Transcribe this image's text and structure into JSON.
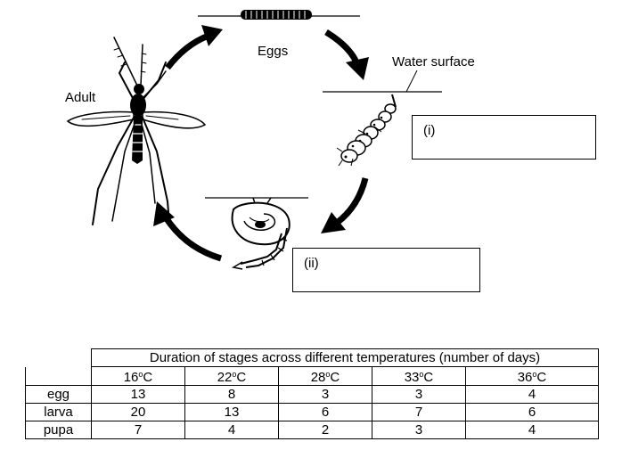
{
  "labels": {
    "eggs": "Eggs",
    "water_surface": "Water surface",
    "adult": "Adult",
    "box_i": "(i)",
    "box_ii": "(ii)"
  },
  "table": {
    "caption": "Duration of stages across different temperatures (number of days)",
    "temperatures": [
      {
        "value": "16",
        "unit": "C"
      },
      {
        "value": "22",
        "unit": "C"
      },
      {
        "value": "28",
        "unit": "C"
      },
      {
        "value": "33",
        "unit": "C"
      },
      {
        "value": "36",
        "unit": "C"
      }
    ],
    "degree_mark": "o",
    "rows": [
      {
        "stage": "egg",
        "values": [
          "13",
          "8",
          "3",
          "3",
          "4"
        ]
      },
      {
        "stage": "larva",
        "values": [
          "20",
          "13",
          "6",
          "7",
          "6"
        ]
      },
      {
        "stage": "pupa",
        "values": [
          "7",
          "4",
          "2",
          "3",
          "4"
        ]
      }
    ]
  }
}
